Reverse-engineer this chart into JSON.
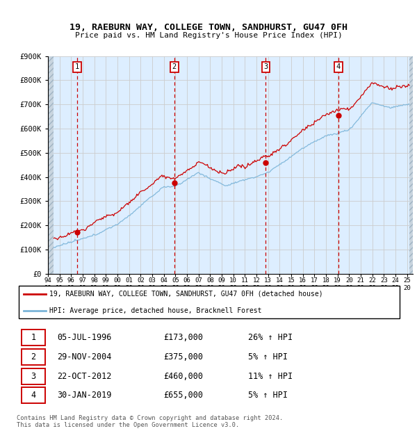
{
  "title": "19, RAEBURN WAY, COLLEGE TOWN, SANDHURST, GU47 0FH",
  "subtitle": "Price paid vs. HM Land Registry's House Price Index (HPI)",
  "hpi_color": "#7ab4d8",
  "price_color": "#cc0000",
  "background_color": "#ddeeff",
  "grid_color": "#aabbcc",
  "sales": [
    {
      "date_num": 1996.51,
      "price": 173000,
      "label": "1"
    },
    {
      "date_num": 2004.91,
      "price": 375000,
      "label": "2"
    },
    {
      "date_num": 2012.8,
      "price": 460000,
      "label": "3"
    },
    {
      "date_num": 2019.08,
      "price": 655000,
      "label": "4"
    }
  ],
  "table_rows": [
    {
      "num": "1",
      "date": "05-JUL-1996",
      "price": "£173,000",
      "change": "26% ↑ HPI"
    },
    {
      "num": "2",
      "date": "29-NOV-2004",
      "price": "£375,000",
      "change": "5% ↑ HPI"
    },
    {
      "num": "3",
      "date": "22-OCT-2012",
      "price": "£460,000",
      "change": "11% ↑ HPI"
    },
    {
      "num": "4",
      "date": "30-JAN-2019",
      "price": "£655,000",
      "change": "5% ↑ HPI"
    }
  ],
  "legend_line1": "19, RAEBURN WAY, COLLEGE TOWN, SANDHURST, GU47 0FH (detached house)",
  "legend_line2": "HPI: Average price, detached house, Bracknell Forest",
  "footer": "Contains HM Land Registry data © Crown copyright and database right 2024.\nThis data is licensed under the Open Government Licence v3.0.",
  "xmin": 1994.0,
  "xmax": 2025.5,
  "data_xstart": 1994.5,
  "data_xend": 2025.2,
  "ylim_top": 900000,
  "yticks": [
    0,
    100000,
    200000,
    300000,
    400000,
    500000,
    600000,
    700000,
    800000,
    900000
  ],
  "ytick_labels": [
    "£0",
    "£100K",
    "£200K",
    "£300K",
    "£400K",
    "£500K",
    "£600K",
    "£700K",
    "£800K",
    "£900K"
  ]
}
